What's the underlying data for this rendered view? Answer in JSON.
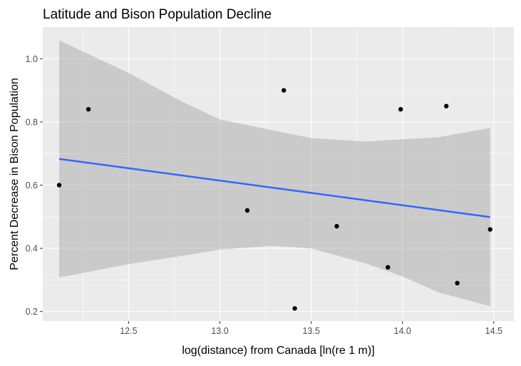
{
  "chart_data": {
    "type": "scatter",
    "title": "Latitude and Bison Population Decline",
    "xlabel": "log(distance) from Canada [ln(re 1 m)]",
    "ylabel": "Percent Decrease in Bison Population",
    "xlim": [
      12.03,
      14.61
    ],
    "ylim": [
      0.17,
      1.1
    ],
    "x_ticks": [
      12.5,
      13.0,
      13.5,
      14.0,
      14.5
    ],
    "x_tick_labels": [
      "12.5",
      "13.0",
      "13.5",
      "14.0",
      "14.5"
    ],
    "y_ticks": [
      0.2,
      0.4,
      0.6,
      0.8,
      1.0
    ],
    "y_tick_labels": [
      "0.2",
      "0.4",
      "0.6",
      "0.8",
      "1.0"
    ],
    "grid": true,
    "points": [
      {
        "x": 12.12,
        "y": 0.6
      },
      {
        "x": 12.28,
        "y": 0.84
      },
      {
        "x": 13.15,
        "y": 0.52
      },
      {
        "x": 13.35,
        "y": 0.9
      },
      {
        "x": 13.41,
        "y": 0.21
      },
      {
        "x": 13.64,
        "y": 0.47
      },
      {
        "x": 13.92,
        "y": 0.34
      },
      {
        "x": 13.99,
        "y": 0.84
      },
      {
        "x": 14.24,
        "y": 0.85
      },
      {
        "x": 14.3,
        "y": 0.29
      },
      {
        "x": 14.48,
        "y": 0.46
      }
    ],
    "trend_line": {
      "method": "linear",
      "x": [
        12.12,
        14.48
      ],
      "y": [
        0.683,
        0.499
      ]
    },
    "confidence_band": {
      "x": [
        12.12,
        12.5,
        12.8,
        13.0,
        13.28,
        13.5,
        13.8,
        14.0,
        14.2,
        14.48
      ],
      "upper": [
        1.058,
        0.955,
        0.862,
        0.808,
        0.774,
        0.749,
        0.738,
        0.745,
        0.752,
        0.781
      ],
      "lower": [
        0.308,
        0.35,
        0.377,
        0.396,
        0.408,
        0.4,
        0.352,
        0.311,
        0.26,
        0.217
      ]
    },
    "colors": {
      "panel_background": "#ebebeb",
      "grid_major": "#ffffff",
      "point": "#000000",
      "trend_line": "#3366ff",
      "band": "#999999"
    }
  }
}
